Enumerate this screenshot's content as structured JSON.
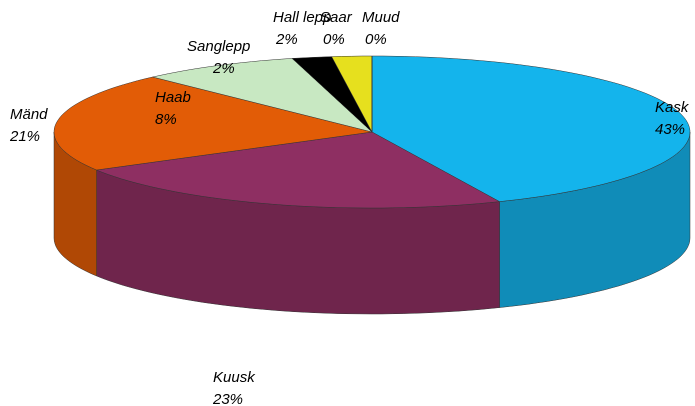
{
  "chart_data": {
    "type": "pie",
    "categories": [
      "Kask",
      "Kuusk",
      "Mänd",
      "Haab",
      "Sanglepp",
      "Hall lepp",
      "Saar",
      "Muud"
    ],
    "values": [
      43,
      23,
      21,
      8,
      2,
      2,
      0,
      0
    ],
    "value_labels": [
      "43%",
      "23%",
      "21%",
      "8%",
      "2%",
      "2%",
      "0%",
      "0%"
    ],
    "colors": [
      "#14b4ec",
      "#8e2f62",
      "#e25c06",
      "#c8e8c2",
      "#000000",
      "#e6e01e",
      "#ffffff",
      "#1c2c86"
    ]
  }
}
